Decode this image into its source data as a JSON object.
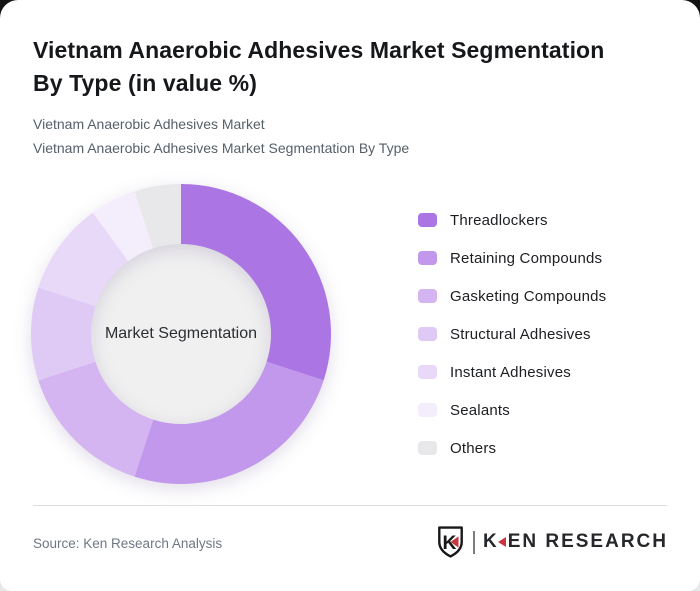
{
  "header": {
    "title": "Vietnam Anaerobic Adhesives Market Segmentation\nBy Type (in value %)",
    "subtitle_lines": [
      "Vietnam Anaerobic Adhesives Market",
      "Vietnam Anaerobic Adhesives Market Segmentation By Type"
    ]
  },
  "chart_data": {
    "type": "pie",
    "variant": "donut",
    "title": "Vietnam Anaerobic Adhesives Market Segmentation By Type (in value %)",
    "center_label": "Market Segmentation",
    "unit": "value %",
    "categories": [
      "Threadlockers",
      "Retaining Compounds",
      "Gasketing Compounds",
      "Structural Adhesives",
      "Instant Adhesives",
      "Sealants",
      "Others"
    ],
    "values": [
      30,
      25,
      15,
      10,
      10,
      5,
      5
    ],
    "values_note": "shares estimated from arc angles; no numeric labels are printed on the chart",
    "colors": [
      "#ab76e3",
      "#c298ec",
      "#d4b4f1",
      "#dfc9f5",
      "#e9d9f8",
      "#f4edfc",
      "#e8e8ea"
    ],
    "start_angle_deg": 0,
    "direction": "clockwise",
    "inner_radius_ratio": 0.6,
    "center_fill": "#f0f0f0",
    "legend_position": "right",
    "legend_swatch_shape": "rounded-rect"
  },
  "footer": {
    "source": "Source: Ken Research Analysis",
    "logo": {
      "emblem_letter": "K",
      "brand_k": "K",
      "brand_rest": "EN RESEARCH",
      "accent": "#c8373d"
    }
  }
}
